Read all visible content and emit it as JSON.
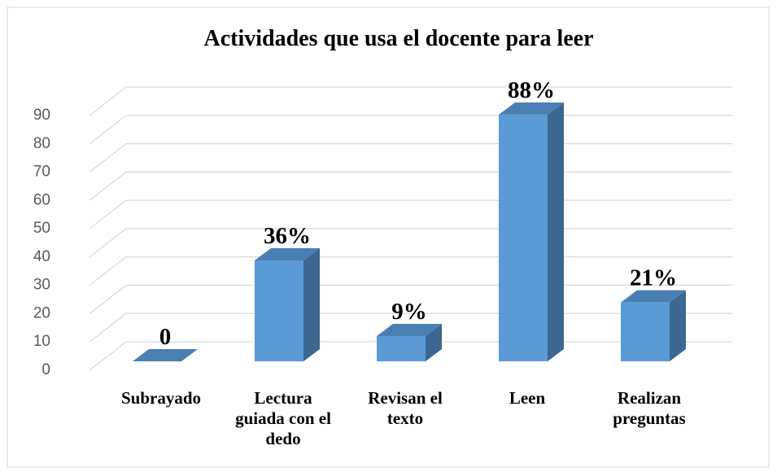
{
  "chart_data": {
    "type": "bar3d",
    "title": "Actividades que usa el docente para leer",
    "categories": [
      "Subrayado",
      "Lectura guiada con el dedo",
      "Revisan el texto",
      "Leen",
      "Realizan preguntas"
    ],
    "values": [
      0,
      36,
      9,
      88,
      21
    ],
    "value_labels": [
      "0",
      "36%",
      "9%",
      "88%",
      "21%"
    ],
    "color": "#5b9bd5",
    "ylim": [
      0,
      90
    ],
    "yticks": [
      0,
      10,
      20,
      30,
      40,
      50,
      60,
      70,
      80,
      90
    ],
    "grid": true
  }
}
